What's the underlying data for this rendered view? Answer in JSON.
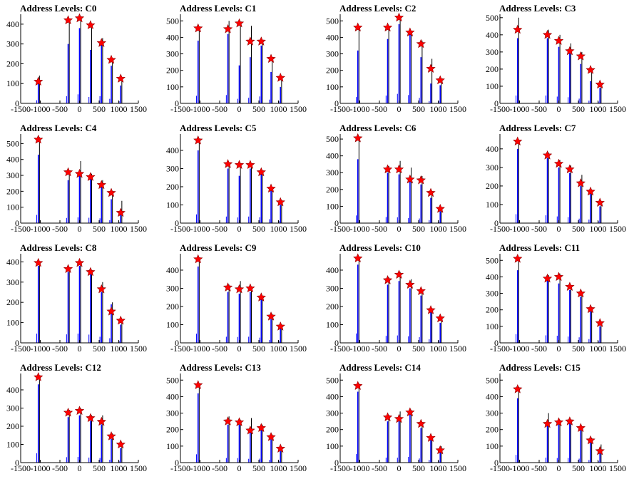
{
  "figure": {
    "grid": "4x4"
  },
  "x_ticks": [
    "-1500",
    "-1000",
    "-500",
    "0",
    "500",
    "1000",
    "1500"
  ],
  "colors": {
    "histogram": "#0000ff",
    "peak_spike": "#000000",
    "marker": "#ff0000",
    "axis": "#000000"
  },
  "chart_data": [
    {
      "type": "bar",
      "title": "Address Levels: C0",
      "xlim": [
        -1500,
        1500
      ],
      "ylim": [
        0,
        450
      ],
      "yticks": [
        0,
        100,
        200,
        300,
        400
      ],
      "marker_x": [
        -1050,
        -290,
        0,
        280,
        560,
        810,
        1050
      ],
      "marker_y": [
        110,
        420,
        430,
        395,
        305,
        220,
        125
      ],
      "peaks": [
        {
          "x": -1050,
          "blue": 130,
          "black": 140
        },
        {
          "x": -290,
          "blue": 300,
          "black": 420
        },
        {
          "x": 0,
          "blue": 380,
          "black": 430
        },
        {
          "x": 280,
          "blue": 270,
          "black": 400
        },
        {
          "x": 560,
          "blue": 300,
          "black": 330
        },
        {
          "x": 810,
          "blue": 190,
          "black": 230
        },
        {
          "x": 1050,
          "blue": 90,
          "black": 130
        }
      ]
    },
    {
      "type": "bar",
      "title": "Address Levels: C1",
      "xlim": [
        -1500,
        1500
      ],
      "ylim": [
        0,
        540
      ],
      "yticks": [
        0,
        100,
        200,
        300,
        400,
        500
      ],
      "marker_x": [
        -1050,
        -290,
        0,
        280,
        560,
        810,
        1050
      ],
      "marker_y": [
        455,
        450,
        485,
        375,
        375,
        270,
        155
      ],
      "peaks": [
        {
          "x": -1050,
          "blue": 380,
          "black": 460
        },
        {
          "x": -290,
          "blue": 420,
          "black": 500
        },
        {
          "x": 0,
          "blue": 230,
          "black": 490
        },
        {
          "x": 280,
          "blue": 280,
          "black": 470
        },
        {
          "x": 560,
          "blue": 350,
          "black": 380
        },
        {
          "x": 810,
          "blue": 190,
          "black": 280
        },
        {
          "x": 1050,
          "blue": 100,
          "black": 160
        }
      ]
    },
    {
      "type": "bar",
      "title": "Address Levels: C2",
      "xlim": [
        -1500,
        1500
      ],
      "ylim": [
        0,
        540
      ],
      "yticks": [
        0,
        100,
        200,
        300,
        400,
        500
      ],
      "marker_x": [
        -1050,
        -290,
        0,
        280,
        560,
        810,
        1050
      ],
      "marker_y": [
        460,
        460,
        520,
        430,
        360,
        210,
        140
      ],
      "peaks": [
        {
          "x": -1050,
          "blue": 320,
          "black": 470
        },
        {
          "x": -290,
          "blue": 390,
          "black": 470
        },
        {
          "x": 0,
          "blue": 480,
          "black": 530
        },
        {
          "x": 280,
          "blue": 420,
          "black": 440
        },
        {
          "x": 560,
          "blue": 280,
          "black": 380
        },
        {
          "x": 810,
          "blue": 120,
          "black": 270
        },
        {
          "x": 1050,
          "blue": 110,
          "black": 150
        }
      ]
    },
    {
      "type": "bar",
      "title": "Address Levels: C3",
      "xlim": [
        -1500,
        1500
      ],
      "ylim": [
        0,
        520
      ],
      "yticks": [
        0,
        100,
        200,
        300,
        400,
        500
      ],
      "marker_x": [
        -1050,
        -290,
        0,
        280,
        560,
        810,
        1050
      ],
      "marker_y": [
        430,
        400,
        365,
        305,
        275,
        195,
        110
      ],
      "peaks": [
        {
          "x": -1050,
          "blue": 380,
          "black": 500
        },
        {
          "x": -290,
          "blue": 380,
          "black": 430
        },
        {
          "x": 0,
          "blue": 330,
          "black": 400
        },
        {
          "x": 280,
          "blue": 300,
          "black": 350
        },
        {
          "x": 560,
          "blue": 230,
          "black": 300
        },
        {
          "x": 810,
          "blue": 130,
          "black": 200
        },
        {
          "x": 1050,
          "blue": 90,
          "black": 120
        }
      ]
    },
    {
      "type": "bar",
      "title": "Address Levels: C4",
      "xlim": [
        -1500,
        1500
      ],
      "ylim": [
        0,
        560
      ],
      "yticks": [
        0,
        100,
        200,
        300,
        400,
        500
      ],
      "marker_x": [
        -1050,
        -290,
        0,
        280,
        560,
        810,
        1050
      ],
      "marker_y": [
        525,
        320,
        310,
        290,
        240,
        190,
        65
      ],
      "peaks": [
        {
          "x": -1050,
          "blue": 430,
          "black": 540
        },
        {
          "x": -290,
          "blue": 270,
          "black": 330
        },
        {
          "x": 0,
          "blue": 300,
          "black": 390
        },
        {
          "x": 280,
          "blue": 280,
          "black": 310
        },
        {
          "x": 560,
          "blue": 250,
          "black": 270
        },
        {
          "x": 810,
          "blue": 150,
          "black": 200
        },
        {
          "x": 1050,
          "blue": 60,
          "black": 140
        }
      ]
    },
    {
      "type": "bar",
      "title": "Address Levels: C5",
      "xlim": [
        -1500,
        1500
      ],
      "ylim": [
        0,
        490
      ],
      "yticks": [
        0,
        100,
        200,
        300,
        400
      ],
      "marker_x": [
        -1050,
        -290,
        0,
        280,
        560,
        810,
        1050
      ],
      "marker_y": [
        455,
        325,
        320,
        320,
        280,
        190,
        115
      ],
      "peaks": [
        {
          "x": -1050,
          "blue": 400,
          "black": 460
        },
        {
          "x": -290,
          "blue": 300,
          "black": 330
        },
        {
          "x": 0,
          "blue": 260,
          "black": 330
        },
        {
          "x": 280,
          "blue": 300,
          "black": 320
        },
        {
          "x": 560,
          "blue": 270,
          "black": 290
        },
        {
          "x": 810,
          "blue": 180,
          "black": 200
        },
        {
          "x": 1050,
          "blue": 100,
          "black": 120
        }
      ]
    },
    {
      "type": "bar",
      "title": "Address Levels: C6",
      "xlim": [
        -1500,
        1500
      ],
      "ylim": [
        0,
        530
      ],
      "yticks": [
        0,
        100,
        200,
        300,
        400,
        500
      ],
      "marker_x": [
        -1050,
        -290,
        0,
        280,
        560,
        810,
        1050
      ],
      "marker_y": [
        505,
        320,
        320,
        260,
        255,
        180,
        85
      ],
      "peaks": [
        {
          "x": -1050,
          "blue": 380,
          "black": 510
        },
        {
          "x": -290,
          "blue": 300,
          "black": 340
        },
        {
          "x": 0,
          "blue": 290,
          "black": 370
        },
        {
          "x": 280,
          "blue": 250,
          "black": 330
        },
        {
          "x": 560,
          "blue": 230,
          "black": 280
        },
        {
          "x": 810,
          "blue": 150,
          "black": 190
        },
        {
          "x": 1050,
          "blue": 70,
          "black": 90
        }
      ]
    },
    {
      "type": "bar",
      "title": "Address Levels: C7",
      "xlim": [
        -1500,
        1500
      ],
      "ylim": [
        0,
        480
      ],
      "yticks": [
        0,
        100,
        200,
        300,
        400
      ],
      "marker_x": [
        -1050,
        -290,
        0,
        280,
        560,
        810,
        1050
      ],
      "marker_y": [
        440,
        365,
        320,
        290,
        215,
        170,
        110
      ],
      "peaks": [
        {
          "x": -1050,
          "blue": 400,
          "black": 450
        },
        {
          "x": -290,
          "blue": 350,
          "black": 380
        },
        {
          "x": 0,
          "blue": 300,
          "black": 340
        },
        {
          "x": 280,
          "blue": 270,
          "black": 310
        },
        {
          "x": 560,
          "blue": 200,
          "black": 260
        },
        {
          "x": 810,
          "blue": 160,
          "black": 180
        },
        {
          "x": 1050,
          "blue": 90,
          "black": 120
        }
      ]
    },
    {
      "type": "bar",
      "title": "Address Levels: C8",
      "xlim": [
        -1500,
        1500
      ],
      "ylim": [
        0,
        440
      ],
      "yticks": [
        0,
        100,
        200,
        300,
        400
      ],
      "marker_x": [
        -1050,
        -290,
        0,
        280,
        560,
        810,
        1050
      ],
      "marker_y": [
        395,
        365,
        395,
        350,
        265,
        155,
        110
      ],
      "peaks": [
        {
          "x": -1050,
          "blue": 380,
          "black": 400
        },
        {
          "x": -290,
          "blue": 350,
          "black": 370
        },
        {
          "x": 0,
          "blue": 380,
          "black": 400
        },
        {
          "x": 280,
          "blue": 340,
          "black": 360
        },
        {
          "x": 560,
          "blue": 250,
          "black": 300
        },
        {
          "x": 810,
          "blue": 190,
          "black": 200
        },
        {
          "x": 1050,
          "blue": 90,
          "black": 110
        }
      ]
    },
    {
      "type": "bar",
      "title": "Address Levels: C9",
      "xlim": [
        -1500,
        1500
      ],
      "ylim": [
        0,
        490
      ],
      "yticks": [
        0,
        100,
        200,
        300,
        400
      ],
      "marker_x": [
        -1050,
        -290,
        0,
        280,
        560,
        810,
        1050
      ],
      "marker_y": [
        460,
        305,
        295,
        300,
        250,
        145,
        90
      ],
      "peaks": [
        {
          "x": -1050,
          "blue": 420,
          "black": 470
        },
        {
          "x": -290,
          "blue": 280,
          "black": 320
        },
        {
          "x": 0,
          "blue": 270,
          "black": 340
        },
        {
          "x": 280,
          "blue": 280,
          "black": 310
        },
        {
          "x": 560,
          "blue": 240,
          "black": 260
        },
        {
          "x": 810,
          "blue": 130,
          "black": 160
        },
        {
          "x": 1050,
          "blue": 80,
          "black": 100
        }
      ]
    },
    {
      "type": "bar",
      "title": "Address Levels: C10",
      "xlim": [
        -1500,
        1500
      ],
      "ylim": [
        0,
        490
      ],
      "yticks": [
        0,
        100,
        200,
        300,
        400
      ],
      "marker_x": [
        -1050,
        -290,
        0,
        280,
        560,
        810,
        1050
      ],
      "marker_y": [
        465,
        345,
        375,
        320,
        285,
        180,
        135
      ],
      "peaks": [
        {
          "x": -1050,
          "blue": 430,
          "black": 470
        },
        {
          "x": -290,
          "blue": 320,
          "black": 360
        },
        {
          "x": 0,
          "blue": 340,
          "black": 390
        },
        {
          "x": 280,
          "blue": 300,
          "black": 350
        },
        {
          "x": 560,
          "blue": 260,
          "black": 290
        },
        {
          "x": 810,
          "blue": 170,
          "black": 190
        },
        {
          "x": 1050,
          "blue": 110,
          "black": 130
        }
      ]
    },
    {
      "type": "bar",
      "title": "Address Levels: C11",
      "xlim": [
        -1500,
        1500
      ],
      "ylim": [
        0,
        540
      ],
      "yticks": [
        0,
        100,
        200,
        300,
        400,
        500
      ],
      "marker_x": [
        -1050,
        -290,
        0,
        280,
        560,
        810,
        1050
      ],
      "marker_y": [
        510,
        390,
        400,
        340,
        300,
        205,
        120
      ],
      "peaks": [
        {
          "x": -1050,
          "blue": 440,
          "black": 520
        },
        {
          "x": -290,
          "blue": 380,
          "black": 410
        },
        {
          "x": 0,
          "blue": 360,
          "black": 420
        },
        {
          "x": 280,
          "blue": 320,
          "black": 350
        },
        {
          "x": 560,
          "blue": 280,
          "black": 310
        },
        {
          "x": 810,
          "blue": 190,
          "black": 210
        },
        {
          "x": 1050,
          "blue": 100,
          "black": 120
        }
      ]
    },
    {
      "type": "bar",
      "title": "Address Levels: C12",
      "xlim": [
        -1500,
        1500
      ],
      "ylim": [
        0,
        490
      ],
      "yticks": [
        0,
        100,
        200,
        300,
        400
      ],
      "marker_x": [
        -1050,
        -290,
        0,
        280,
        560,
        810,
        1050
      ],
      "marker_y": [
        470,
        275,
        285,
        245,
        225,
        145,
        100
      ],
      "peaks": [
        {
          "x": -1050,
          "blue": 430,
          "black": 470
        },
        {
          "x": -290,
          "blue": 250,
          "black": 290
        },
        {
          "x": 0,
          "blue": 260,
          "black": 300
        },
        {
          "x": 280,
          "blue": 230,
          "black": 260
        },
        {
          "x": 560,
          "blue": 210,
          "black": 260
        },
        {
          "x": 810,
          "blue": 130,
          "black": 160
        },
        {
          "x": 1050,
          "blue": 80,
          "black": 110
        }
      ]
    },
    {
      "type": "bar",
      "title": "Address Levels: C13",
      "xlim": [
        -1500,
        1500
      ],
      "ylim": [
        0,
        540
      ],
      "yticks": [
        0,
        100,
        200,
        300,
        400,
        500
      ],
      "marker_x": [
        -1050,
        -290,
        0,
        280,
        560,
        810,
        1050
      ],
      "marker_y": [
        470,
        250,
        245,
        195,
        210,
        155,
        85
      ],
      "peaks": [
        {
          "x": -1050,
          "blue": 420,
          "black": 480
        },
        {
          "x": -290,
          "blue": 230,
          "black": 280
        },
        {
          "x": 0,
          "blue": 230,
          "black": 260
        },
        {
          "x": 280,
          "blue": 190,
          "black": 270
        },
        {
          "x": 560,
          "blue": 200,
          "black": 230
        },
        {
          "x": 810,
          "blue": 140,
          "black": 170
        },
        {
          "x": 1050,
          "blue": 70,
          "black": 90
        }
      ]
    },
    {
      "type": "bar",
      "title": "Address Levels: C14",
      "xlim": [
        -1500,
        1500
      ],
      "ylim": [
        0,
        540
      ],
      "yticks": [
        0,
        100,
        200,
        300,
        400,
        500
      ],
      "marker_x": [
        -1050,
        -290,
        0,
        280,
        560,
        810,
        1050
      ],
      "marker_y": [
        465,
        275,
        265,
        305,
        235,
        150,
        75
      ],
      "peaks": [
        {
          "x": -1050,
          "blue": 430,
          "black": 480
        },
        {
          "x": -290,
          "blue": 250,
          "black": 290
        },
        {
          "x": 0,
          "blue": 250,
          "black": 310
        },
        {
          "x": 280,
          "blue": 290,
          "black": 320
        },
        {
          "x": 560,
          "blue": 210,
          "black": 240
        },
        {
          "x": 810,
          "blue": 140,
          "black": 160
        },
        {
          "x": 1050,
          "blue": 70,
          "black": 100
        }
      ]
    },
    {
      "type": "bar",
      "title": "Address Levels: C15",
      "xlim": [
        -1500,
        1500
      ],
      "ylim": [
        0,
        540
      ],
      "yticks": [
        0,
        100,
        200,
        300,
        400,
        500
      ],
      "marker_x": [
        -1050,
        -290,
        0,
        280,
        560,
        810,
        1050
      ],
      "marker_y": [
        445,
        235,
        245,
        250,
        210,
        135,
        70
      ],
      "peaks": [
        {
          "x": -1050,
          "blue": 390,
          "black": 460
        },
        {
          "x": -290,
          "blue": 250,
          "black": 300
        },
        {
          "x": 0,
          "blue": 230,
          "black": 260
        },
        {
          "x": 280,
          "blue": 240,
          "black": 260
        },
        {
          "x": 560,
          "blue": 200,
          "black": 220
        },
        {
          "x": 810,
          "blue": 130,
          "black": 150
        },
        {
          "x": 1050,
          "blue": 80,
          "black": 110
        }
      ]
    }
  ]
}
